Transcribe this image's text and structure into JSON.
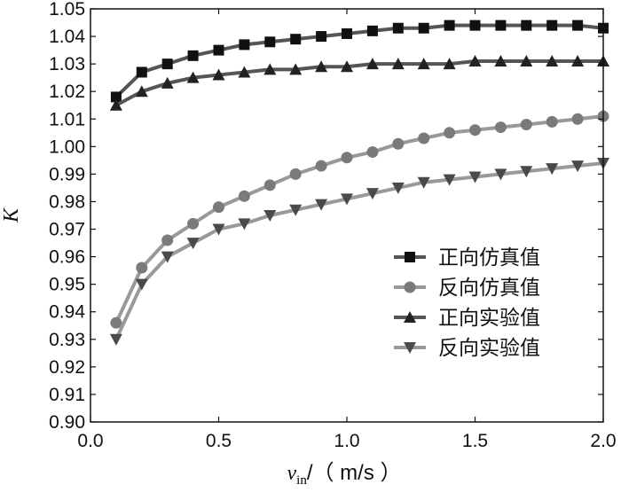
{
  "chart_data": {
    "type": "line",
    "title": "",
    "ylabel": "K",
    "xlabel": {
      "var": "v",
      "sub": "in",
      "unit": "/（ m/s ）"
    },
    "xlim": [
      0.0,
      2.0
    ],
    "ylim": [
      0.9,
      1.05
    ],
    "x_ticks": [
      "0.0",
      "0.5",
      "1.0",
      "1.5",
      "2.0"
    ],
    "y_ticks": [
      "0.90",
      "0.91",
      "0.92",
      "0.93",
      "0.94",
      "0.95",
      "0.96",
      "0.97",
      "0.98",
      "0.99",
      "1.00",
      "1.01",
      "1.02",
      "1.03",
      "1.04",
      "1.05"
    ],
    "legend_position": "center-right",
    "x": [
      0.1,
      0.2,
      0.3,
      0.4,
      0.5,
      0.6,
      0.7,
      0.8,
      0.9,
      1.0,
      1.1,
      1.2,
      1.3,
      1.4,
      1.5,
      1.6,
      1.7,
      1.8,
      1.9,
      2.0
    ],
    "series": [
      {
        "name": "正向仿真值",
        "marker": "square",
        "color": "#111111",
        "values": [
          1.018,
          1.027,
          1.03,
          1.033,
          1.035,
          1.037,
          1.038,
          1.039,
          1.04,
          1.041,
          1.042,
          1.043,
          1.043,
          1.044,
          1.044,
          1.044,
          1.044,
          1.044,
          1.044,
          1.043
        ]
      },
      {
        "name": "反向仿真值",
        "marker": "circle",
        "color": "#7a7a7a",
        "values": [
          0.936,
          0.956,
          0.966,
          0.972,
          0.978,
          0.982,
          0.986,
          0.99,
          0.993,
          0.996,
          0.998,
          1.001,
          1.003,
          1.005,
          1.006,
          1.007,
          1.008,
          1.009,
          1.01,
          1.011
        ]
      },
      {
        "name": "正向实验值",
        "marker": "triangle-up",
        "color": "#222222",
        "values": [
          1.015,
          1.02,
          1.023,
          1.025,
          1.026,
          1.027,
          1.028,
          1.028,
          1.029,
          1.029,
          1.03,
          1.03,
          1.03,
          1.03,
          1.031,
          1.031,
          1.031,
          1.031,
          1.031,
          1.031
        ]
      },
      {
        "name": "反向实验值",
        "marker": "triangle-down",
        "color": "#4a4a4a",
        "values": [
          0.93,
          0.95,
          0.96,
          0.965,
          0.97,
          0.972,
          0.975,
          0.977,
          0.979,
          0.981,
          0.983,
          0.985,
          0.987,
          0.988,
          0.989,
          0.99,
          0.991,
          0.992,
          0.993,
          0.994
        ]
      }
    ]
  }
}
